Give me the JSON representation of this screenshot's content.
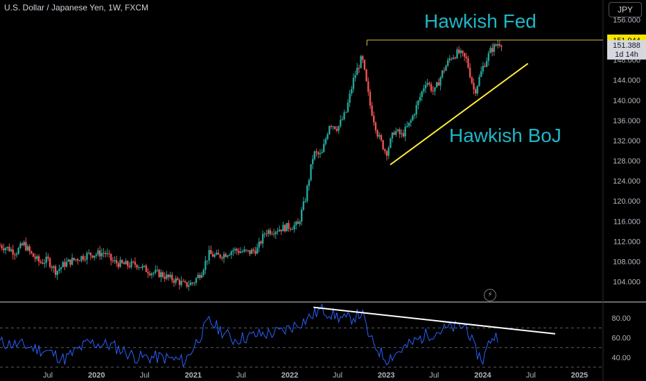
{
  "header": {
    "title": "U.S. Dollar / Japanese Yen, 1W, FXCM",
    "currency_button": "JPY"
  },
  "colors": {
    "up": "#26a69a",
    "down": "#ef5350",
    "annotation": "#1fb6c8",
    "rsi": "#2962ff",
    "trend": "#ffeb3b",
    "price_badge": "#f7e600"
  },
  "icons": {
    "replay": "lightning-bolt-icon"
  },
  "chart_data": [
    {
      "type": "candlestick",
      "ylim": [
        100,
        156
      ],
      "y_ticks": [
        104,
        108,
        112,
        116,
        120,
        124,
        128,
        132,
        136,
        140,
        144,
        148,
        152,
        156
      ],
      "y_tick_labels": [
        "104.000",
        "108.000",
        "112.000",
        "116.000",
        "120.000",
        "124.000",
        "128.000",
        "132.000",
        "136.000",
        "140.000",
        "144.000",
        "148.000",
        "152.000",
        "156.000"
      ],
      "x_tick_labels": [
        "Jul",
        "2020",
        "Jul",
        "2021",
        "Jul",
        "2022",
        "Jul",
        "2023",
        "Jul",
        "2024",
        "Jul",
        "2025"
      ],
      "x_tick_dates": [
        "2019-07",
        "2020-01",
        "2020-07",
        "2021-01",
        "2021-07",
        "2022-01",
        "2022-07",
        "2023-01",
        "2023-07",
        "2024-01",
        "2024-07",
        "2025-01"
      ],
      "close_path": [
        [
          "2019-01-01",
          111.2
        ],
        [
          "2019-02-01",
          110.6
        ],
        [
          "2019-03-01",
          109.8
        ],
        [
          "2019-04-01",
          111.5
        ],
        [
          "2019-05-01",
          109.3
        ],
        [
          "2019-06-01",
          107.8
        ],
        [
          "2019-07-01",
          108.3
        ],
        [
          "2019-08-01",
          106.0
        ],
        [
          "2019-09-01",
          107.5
        ],
        [
          "2019-10-01",
          108.2
        ],
        [
          "2019-11-01",
          108.8
        ],
        [
          "2019-12-01",
          109.4
        ],
        [
          "2020-01-01",
          109.5
        ],
        [
          "2020-02-01",
          109.8
        ],
        [
          "2020-03-01",
          108.0
        ],
        [
          "2020-04-01",
          107.5
        ],
        [
          "2020-05-01",
          107.3
        ],
        [
          "2020-06-01",
          107.5
        ],
        [
          "2020-07-01",
          106.5
        ],
        [
          "2020-08-01",
          105.8
        ],
        [
          "2020-09-01",
          105.5
        ],
        [
          "2020-10-01",
          104.7
        ],
        [
          "2020-11-01",
          104.2
        ],
        [
          "2020-12-01",
          103.3
        ],
        [
          "2021-01-01",
          103.8
        ],
        [
          "2021-02-01",
          106.0
        ],
        [
          "2021-03-01",
          109.5
        ],
        [
          "2021-04-01",
          109.0
        ],
        [
          "2021-05-01",
          109.5
        ],
        [
          "2021-06-01",
          110.3
        ],
        [
          "2021-07-01",
          110.0
        ],
        [
          "2021-08-01",
          109.8
        ],
        [
          "2021-09-01",
          110.5
        ],
        [
          "2021-10-01",
          114.0
        ],
        [
          "2021-11-01",
          114.2
        ],
        [
          "2021-12-01",
          114.6
        ],
        [
          "2022-01-01",
          115.0
        ],
        [
          "2022-02-01",
          115.2
        ],
        [
          "2022-03-01",
          120.5
        ],
        [
          "2022-04-01",
          129.5
        ],
        [
          "2022-05-01",
          129.0
        ],
        [
          "2022-06-01",
          135.5
        ],
        [
          "2022-07-01",
          134.5
        ],
        [
          "2022-08-01",
          137.5
        ],
        [
          "2022-09-01",
          144.5
        ],
        [
          "2022-10-01",
          148.5
        ],
        [
          "2022-11-01",
          139.0
        ],
        [
          "2022-12-01",
          133.0
        ],
        [
          "2023-01-01",
          129.5
        ],
        [
          "2023-02-01",
          134.0
        ],
        [
          "2023-03-01",
          133.0
        ],
        [
          "2023-04-01",
          135.5
        ],
        [
          "2023-05-01",
          139.5
        ],
        [
          "2023-06-01",
          144.0
        ],
        [
          "2023-07-01",
          141.5
        ],
        [
          "2023-08-01",
          145.5
        ],
        [
          "2023-09-01",
          148.5
        ],
        [
          "2023-10-01",
          149.5
        ],
        [
          "2023-11-01",
          148.0
        ],
        [
          "2023-12-01",
          141.5
        ],
        [
          "2024-01-01",
          146.5
        ],
        [
          "2024-02-01",
          150.0
        ],
        [
          "2024-03-01",
          151.388
        ]
      ],
      "last_price": 151.388,
      "resistance_level": 151.944,
      "price_badge": "151.944",
      "last_price_badge": "151.388",
      "countdown_badge": "1d 14h",
      "annotations": [
        "Hawkish Fed",
        "Hawkish BoJ"
      ],
      "resistance_line": {
        "from": [
          "2022-10-20",
          151.944
        ],
        "to": [
          "2024-12-31",
          151.944
        ]
      },
      "support_trendline": {
        "from": [
          "2023-01-16",
          127.2
        ],
        "to": [
          "2024-06-20",
          147.3
        ]
      }
    },
    {
      "type": "line",
      "ylim": [
        30,
        95
      ],
      "y_ticks": [
        40,
        60,
        80
      ],
      "y_tick_labels": [
        "40.00",
        "60.00",
        "80.00"
      ],
      "levels": [
        30,
        50,
        70
      ],
      "path": [
        [
          "2019-01-01",
          55
        ],
        [
          "2019-04-01",
          52
        ],
        [
          "2019-07-01",
          46
        ],
        [
          "2019-09-01",
          38
        ],
        [
          "2019-12-01",
          55
        ],
        [
          "2020-03-01",
          52
        ],
        [
          "2020-06-01",
          40
        ],
        [
          "2020-09-01",
          40
        ],
        [
          "2020-12-01",
          36
        ],
        [
          "2021-03-01",
          77
        ],
        [
          "2021-06-01",
          58
        ],
        [
          "2021-09-01",
          63
        ],
        [
          "2021-12-01",
          66
        ],
        [
          "2022-03-01",
          78
        ],
        [
          "2022-05-01",
          89
        ],
        [
          "2022-08-01",
          78
        ],
        [
          "2022-10-01",
          85
        ],
        [
          "2022-11-01",
          58
        ],
        [
          "2023-01-01",
          38
        ],
        [
          "2023-03-01",
          48
        ],
        [
          "2023-06-01",
          63
        ],
        [
          "2023-09-01",
          70
        ],
        [
          "2023-11-01",
          72
        ],
        [
          "2023-12-01",
          48
        ],
        [
          "2024-01-01",
          37
        ],
        [
          "2024-02-01",
          60
        ],
        [
          "2024-03-01",
          62
        ]
      ],
      "divergence_line": {
        "from": [
          "2022-04-01",
          91
        ],
        "to": [
          "2024-10-01",
          64
        ]
      }
    }
  ]
}
